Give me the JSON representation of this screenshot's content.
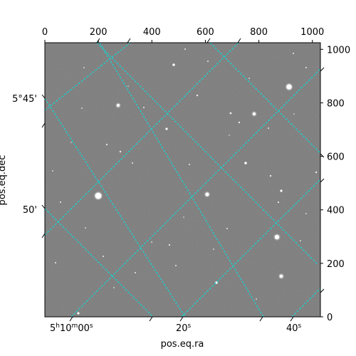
{
  "figure": {
    "colors": {
      "grid": "#00e5e5",
      "frame": "#000000",
      "sky_mid": "#8a8a8a",
      "star": "#ffffff"
    },
    "pixel_axes": {
      "x_ticks": [
        "0",
        "200",
        "400",
        "600",
        "800",
        "1000"
      ],
      "y_ticks": [
        "0",
        "200",
        "400",
        "600",
        "800",
        "1000"
      ]
    },
    "world_axes": {
      "ra_label": "pos.eq.ra",
      "dec_label": "pos.eq.dec",
      "ra_ticks": [
        {
          "h": "5",
          "m": "10",
          "s": "00",
          "type": "full"
        },
        {
          "s": "20",
          "type": "sec"
        },
        {
          "s": "40",
          "type": "sec"
        }
      ],
      "dec_ticks": [
        "5°45'",
        "50'"
      ]
    },
    "grid_lines": "dashed, rotated coordinate grid"
  }
}
